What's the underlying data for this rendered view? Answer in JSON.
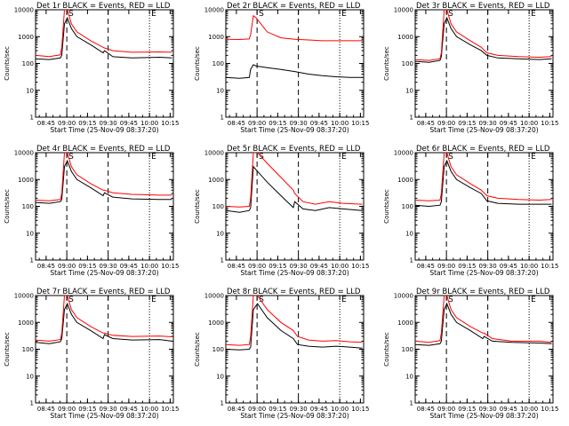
{
  "chart_data": {
    "type": "line",
    "scale_y": "log",
    "ylim": [
      1,
      10000
    ],
    "ytick_labels": [
      "1",
      "10",
      "100",
      "1000",
      "10000"
    ],
    "ylabel": "Counts/sec",
    "x_unit": "minutes since 08:37:20",
    "xlim": [
      0,
      100
    ],
    "xtick_labels": [
      "08:45",
      "09:00",
      "09:15",
      "09:30",
      "09:45",
      "10:00",
      "10:15"
    ],
    "xtick_values": [
      7.67,
      22.67,
      37.67,
      52.67,
      67.67,
      82.67,
      97.67
    ],
    "xlabel": "Start Time (25-Nov-09 08:37:20)",
    "colors": {
      "events": "#000000",
      "lld": "#ff0000"
    },
    "markers": [
      {
        "label": "S",
        "x": 22.67,
        "style": "dashed"
      },
      {
        "label": "",
        "x": 52.67,
        "style": "dashed"
      },
      {
        "label": "E",
        "x": 82.67,
        "style": "dotted"
      }
    ],
    "panels": [
      {
        "title": "Det 1r  BLACK = Events, RED = LLD",
        "series": [
          {
            "name": "Events",
            "x": [
              0,
              10,
              18,
              19,
              21,
              23,
              26,
              30,
              40,
              49,
              50,
              56,
              70,
              90,
              99
            ],
            "values": [
              150,
              140,
              160,
              200,
              3000,
              5000,
              2000,
              1000,
              500,
              250,
              300,
              180,
              160,
              170,
              160
            ]
          },
          {
            "name": "LLD",
            "x": [
              0,
              10,
              18,
              19,
              21,
              23,
              26,
              30,
              40,
              49,
              50,
              56,
              70,
              90,
              99
            ],
            "values": [
              200,
              180,
              210,
              400,
              10000,
              10000,
              3000,
              1500,
              700,
              400,
              380,
              300,
              260,
              270,
              260
            ]
          }
        ]
      },
      {
        "title": "Det 2r  BLACK = Events, RED = LLD",
        "series": [
          {
            "name": "Events",
            "x": [
              0,
              10,
              17,
              18,
              20,
              22,
              30,
              40,
              50,
              60,
              70,
              80,
              90,
              99
            ],
            "values": [
              30,
              28,
              30,
              60,
              90,
              80,
              70,
              60,
              50,
              40,
              35,
              32,
              30,
              30
            ]
          },
          {
            "name": "LLD",
            "x": [
              0,
              10,
              17,
              18,
              20,
              22,
              30,
              40,
              50,
              60,
              70,
              80,
              90,
              99
            ],
            "values": [
              800,
              780,
              820,
              1200,
              6000,
              5000,
              1500,
              900,
              800,
              750,
              700,
              700,
              700,
              700
            ]
          }
        ]
      },
      {
        "title": "Det 3r  BLACK = Events, RED = LLD",
        "series": [
          {
            "name": "Events",
            "x": [
              0,
              10,
              18,
              19,
              21,
              23,
              26,
              30,
              40,
              48,
              52,
              60,
              75,
              90,
              99
            ],
            "values": [
              120,
              110,
              130,
              180,
              3000,
              5000,
              2000,
              1000,
              500,
              300,
              200,
              160,
              150,
              140,
              150
            ]
          },
          {
            "name": "LLD",
            "x": [
              0,
              10,
              18,
              19,
              21,
              23,
              26,
              30,
              40,
              48,
              52,
              60,
              75,
              90,
              99
            ],
            "values": [
              140,
              130,
              150,
              250,
              10000,
              10000,
              3000,
              1500,
              700,
              400,
              250,
              200,
              180,
              170,
              180
            ]
          }
        ]
      },
      {
        "title": "Det 4r  BLACK = Events, RED = LLD",
        "series": [
          {
            "name": "Events",
            "x": [
              0,
              10,
              18,
              19,
              21,
              23,
              26,
              30,
              40,
              49,
              50,
              56,
              70,
              90,
              99
            ],
            "values": [
              140,
              130,
              150,
              180,
              3000,
              5000,
              2000,
              1000,
              500,
              250,
              320,
              220,
              190,
              180,
              180
            ]
          },
          {
            "name": "LLD",
            "x": [
              0,
              10,
              18,
              19,
              21,
              23,
              26,
              30,
              40,
              49,
              50,
              56,
              70,
              90,
              99
            ],
            "values": [
              170,
              160,
              180,
              300,
              10000,
              10000,
              3000,
              1500,
              700,
              400,
              400,
              320,
              280,
              260,
              260
            ]
          }
        ]
      },
      {
        "title": "Det 5r  BLACK = Events, RED = LLD",
        "series": [
          {
            "name": "Events",
            "x": [
              0,
              10,
              17,
              18,
              20,
              23,
              30,
              40,
              49,
              50,
              56,
              65,
              75,
              85,
              99
            ],
            "values": [
              70,
              60,
              70,
              90,
              3000,
              2000,
              800,
              250,
              90,
              150,
              80,
              70,
              90,
              80,
              70
            ]
          },
          {
            "name": "LLD",
            "x": [
              0,
              10,
              17,
              18,
              20,
              23,
              30,
              40,
              49,
              50,
              56,
              65,
              75,
              85,
              99
            ],
            "values": [
              100,
              95,
              100,
              200,
              10000,
              10000,
              4000,
              1200,
              400,
              300,
              150,
              120,
              150,
              130,
              120
            ]
          }
        ]
      },
      {
        "title": "Det 6r  BLACK = Events, RED = LLD",
        "series": [
          {
            "name": "Events",
            "x": [
              0,
              10,
              18,
              19,
              21,
              23,
              26,
              30,
              40,
              48,
              52,
              60,
              75,
              90,
              99
            ],
            "values": [
              110,
              100,
              110,
              150,
              3000,
              5000,
              2000,
              1000,
              500,
              300,
              160,
              130,
              120,
              120,
              120
            ]
          },
          {
            "name": "LLD",
            "x": [
              0,
              10,
              18,
              19,
              21,
              23,
              26,
              30,
              40,
              48,
              52,
              60,
              75,
              90,
              99
            ],
            "values": [
              170,
              160,
              170,
              300,
              10000,
              10000,
              3000,
              1500,
              700,
              400,
              250,
              200,
              180,
              170,
              180
            ]
          }
        ]
      },
      {
        "title": "Det 7r  BLACK = Events, RED = LLD",
        "series": [
          {
            "name": "Events",
            "x": [
              0,
              10,
              18,
              19,
              21,
              23,
              26,
              30,
              40,
              49,
              50,
              56,
              70,
              90,
              99
            ],
            "values": [
              180,
              160,
              190,
              250,
              3000,
              5000,
              2000,
              1000,
              500,
              250,
              350,
              250,
              220,
              230,
              200
            ]
          },
          {
            "name": "LLD",
            "x": [
              0,
              10,
              18,
              19,
              21,
              23,
              26,
              30,
              40,
              49,
              50,
              56,
              70,
              90,
              99
            ],
            "values": [
              220,
              200,
              230,
              400,
              10000,
              10000,
              3000,
              1500,
              700,
              400,
              400,
              330,
              300,
              310,
              290
            ]
          }
        ]
      },
      {
        "title": "Det 8r  BLACK = Events, RED = LLD",
        "series": [
          {
            "name": "Events",
            "x": [
              0,
              10,
              17,
              18,
              20,
              23,
              30,
              40,
              49,
              52,
              60,
              70,
              80,
              90,
              99
            ],
            "values": [
              100,
              95,
              100,
              120,
              3000,
              5000,
              1500,
              500,
              250,
              150,
              130,
              120,
              130,
              120,
              110
            ]
          },
          {
            "name": "LLD",
            "x": [
              0,
              10,
              17,
              18,
              20,
              23,
              30,
              40,
              49,
              52,
              60,
              70,
              80,
              90,
              99
            ],
            "values": [
              150,
              140,
              150,
              300,
              10000,
              10000,
              3000,
              1000,
              500,
              300,
              220,
              200,
              210,
              190,
              180
            ]
          }
        ]
      },
      {
        "title": "Det 9r  BLACK = Events, RED = LLD",
        "series": [
          {
            "name": "Events",
            "x": [
              0,
              10,
              18,
              19,
              21,
              23,
              26,
              30,
              40,
              49,
              50,
              56,
              70,
              90,
              99
            ],
            "values": [
              150,
              140,
              160,
              200,
              3000,
              5000,
              2000,
              1000,
              500,
              250,
              300,
              200,
              180,
              170,
              160
            ]
          },
          {
            "name": "LLD",
            "x": [
              0,
              10,
              18,
              19,
              21,
              23,
              26,
              30,
              40,
              49,
              50,
              56,
              70,
              90,
              99
            ],
            "values": [
              200,
              180,
              210,
              400,
              10000,
              10000,
              3000,
              1500,
              700,
              400,
              400,
              250,
              200,
              200,
              180
            ]
          }
        ]
      }
    ]
  }
}
